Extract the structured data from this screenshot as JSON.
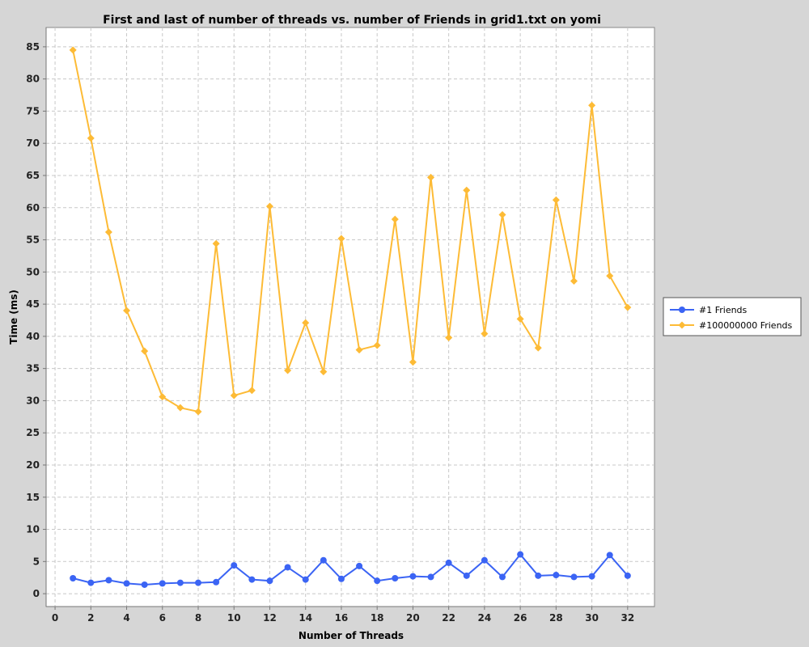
{
  "chart_data": {
    "type": "line",
    "title": "First and last of number of threads vs. number of Friends in grid1.txt on yomi",
    "xlabel": "Number of Threads",
    "ylabel": "Time (ms)",
    "xlim": [
      -0.5,
      33.5
    ],
    "ylim": [
      -2,
      88
    ],
    "xticks": [
      0,
      2,
      4,
      6,
      8,
      10,
      12,
      14,
      16,
      18,
      20,
      22,
      24,
      26,
      28,
      30,
      32
    ],
    "yticks": [
      0,
      5,
      10,
      15,
      20,
      25,
      30,
      35,
      40,
      45,
      50,
      55,
      60,
      65,
      70,
      75,
      80,
      85
    ],
    "grid": true,
    "legend_position": "right",
    "x": [
      1,
      2,
      3,
      4,
      5,
      6,
      7,
      8,
      9,
      10,
      11,
      12,
      13,
      14,
      15,
      16,
      17,
      18,
      19,
      20,
      21,
      22,
      23,
      24,
      25,
      26,
      27,
      28,
      29,
      30,
      31,
      32
    ],
    "series": [
      {
        "name": "#1 Friends",
        "color": "#3b64f4",
        "marker": "circle",
        "values": [
          2.4,
          1.7,
          2.1,
          1.6,
          1.4,
          1.6,
          1.7,
          1.7,
          1.8,
          4.4,
          2.2,
          2.0,
          4.1,
          2.2,
          5.2,
          2.3,
          4.3,
          2.0,
          2.4,
          2.7,
          2.6,
          4.8,
          2.8,
          5.2,
          2.6,
          6.1,
          2.8,
          2.9,
          2.6,
          2.7,
          6.0,
          2.8
        ]
      },
      {
        "name": "#100000000 Friends",
        "color": "#fdbb36",
        "marker": "diamond",
        "values": [
          84.5,
          70.8,
          56.2,
          44.0,
          37.7,
          30.6,
          28.9,
          28.3,
          54.4,
          30.8,
          31.6,
          60.2,
          34.7,
          42.1,
          34.5,
          55.2,
          37.9,
          38.6,
          58.2,
          36.0,
          64.7,
          39.8,
          62.7,
          40.4,
          58.9,
          42.7,
          38.2,
          61.2,
          48.6,
          75.9,
          49.4,
          44.5
        ]
      }
    ]
  }
}
